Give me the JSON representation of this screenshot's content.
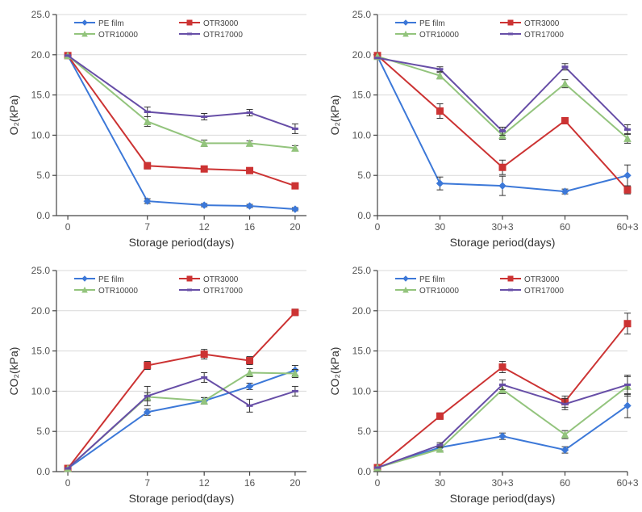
{
  "global": {
    "background_color": "#ffffff",
    "grid_color": "#d9d9d9",
    "grid_width": 1,
    "axis_color": "#444444",
    "axis_width": 1.2,
    "tick_length": 5,
    "tick_fontsize": 12,
    "axis_label_fontsize": 14,
    "legend_fontsize": 10,
    "title_fontsize": 12,
    "line_width": 2,
    "marker_radius": 4,
    "errorbar_color": "#333333",
    "errorbar_cap": 4
  },
  "series_style": {
    "control": {
      "label": "PE film",
      "color": "#3c78d8",
      "marker": "diamond"
    },
    "otr3000": {
      "label": "OTR3000",
      "color": "#cc3333",
      "marker": "square"
    },
    "otr10000": {
      "label": "OTR10000",
      "color": "#93c47d",
      "marker": "triangle"
    },
    "otr17000": {
      "label": "OTR17000",
      "color": "#674ea7",
      "marker": "line"
    }
  },
  "panels": {
    "TL": {
      "type": "line",
      "x_type": "numeric",
      "x": [
        0,
        7,
        12,
        16,
        20
      ],
      "x_axis_label": "Storage period(days)",
      "y_axis_label": "O₂(kPa)",
      "xlim": [
        -1,
        21
      ],
      "ylim": [
        0,
        25
      ],
      "ytick_step": 5,
      "legend_pos": "top-in",
      "series": {
        "control": {
          "y": [
            19.9,
            1.8,
            1.3,
            1.2,
            0.8
          ],
          "err": [
            0,
            0.3,
            0.2,
            0.2,
            0.2
          ]
        },
        "otr3000": {
          "y": [
            19.9,
            6.2,
            5.8,
            5.6,
            3.7
          ],
          "err": [
            0,
            0.4,
            0.3,
            0.3,
            0.3
          ]
        },
        "otr10000": {
          "y": [
            19.9,
            11.7,
            9.0,
            9.0,
            8.4
          ],
          "err": [
            0,
            0.6,
            0.4,
            0.3,
            0.3
          ]
        },
        "otr17000": {
          "y": [
            19.9,
            12.9,
            12.3,
            12.8,
            10.8
          ],
          "err": [
            0,
            0.6,
            0.4,
            0.4,
            0.6
          ]
        }
      }
    },
    "TR": {
      "type": "line",
      "x_type": "category",
      "x": [
        "0",
        "30",
        "30+3",
        "60",
        "60+3"
      ],
      "x_axis_label": "Storage period(days)",
      "y_axis_label": "O₂(kPa)",
      "xlim": [
        0,
        4
      ],
      "ylim": [
        0,
        25
      ],
      "ytick_step": 5,
      "legend_pos": "top-in",
      "series": {
        "control": {
          "y": [
            19.8,
            4.0,
            3.7,
            3.0,
            5.0
          ],
          "err": [
            0,
            0.8,
            1.2,
            0.3,
            1.3
          ]
        },
        "otr3000": {
          "y": [
            19.9,
            13.0,
            6.0,
            11.8,
            3.2
          ],
          "err": [
            0,
            0.9,
            0.9,
            0.4,
            0.5
          ]
        },
        "otr10000": {
          "y": [
            19.8,
            17.4,
            10.0,
            16.4,
            9.6
          ],
          "err": [
            0,
            0.4,
            0.5,
            0.5,
            0.6
          ]
        },
        "otr17000": {
          "y": [
            19.6,
            18.2,
            10.5,
            18.5,
            10.7
          ],
          "err": [
            0,
            0.3,
            0.5,
            0.4,
            0.6
          ]
        }
      }
    },
    "BL": {
      "type": "line",
      "x_type": "numeric",
      "x": [
        0,
        7,
        12,
        16,
        20
      ],
      "x_axis_label": "Storage period(days)",
      "y_axis_label": "CO₂(kPa)",
      "xlim": [
        -1,
        21
      ],
      "ylim": [
        0,
        25
      ],
      "ytick_step": 5,
      "legend_pos": "top-in",
      "series": {
        "control": {
          "y": [
            0.4,
            7.4,
            8.8,
            10.6,
            12.6
          ],
          "err": [
            0,
            0.4,
            0.4,
            0.4,
            0.6
          ]
        },
        "otr3000": {
          "y": [
            0.4,
            13.2,
            14.6,
            13.8,
            19.8
          ],
          "err": [
            0,
            0.5,
            0.6,
            0.5,
            0.4
          ]
        },
        "otr10000": {
          "y": [
            0.4,
            9.3,
            8.8,
            12.3,
            12.2
          ],
          "err": [
            0,
            0.5,
            0.4,
            0.5,
            0.5
          ]
        },
        "otr17000": {
          "y": [
            0.4,
            9.4,
            11.7,
            8.2,
            10.0
          ],
          "err": [
            0,
            1.2,
            0.6,
            0.8,
            0.6
          ]
        }
      }
    },
    "BR": {
      "type": "line",
      "x_type": "category",
      "x": [
        "0",
        "30",
        "30+3",
        "60",
        "60+3"
      ],
      "x_axis_label": "Storage period(days)",
      "y_axis_label": "CO₂(kPa)",
      "xlim": [
        0,
        4
      ],
      "ylim": [
        0,
        25
      ],
      "ytick_step": 5,
      "legend_pos": "top-in",
      "series": {
        "control": {
          "y": [
            0.5,
            3.0,
            4.4,
            2.7,
            8.2
          ],
          "err": [
            0,
            0.4,
            0.4,
            0.4,
            1.5
          ]
        },
        "otr3000": {
          "y": [
            0.5,
            6.9,
            13.0,
            8.7,
            18.4
          ],
          "err": [
            0,
            0.4,
            0.7,
            0.7,
            1.3
          ]
        },
        "otr10000": {
          "y": [
            0.5,
            2.8,
            10.2,
            4.6,
            10.6
          ],
          "err": [
            0,
            0.3,
            0.5,
            0.5,
            1.2
          ]
        },
        "otr17000": {
          "y": [
            0.5,
            3.3,
            10.8,
            8.4,
            10.8
          ],
          "err": [
            0,
            0.3,
            0.6,
            0.7,
            1.2
          ]
        }
      }
    }
  }
}
